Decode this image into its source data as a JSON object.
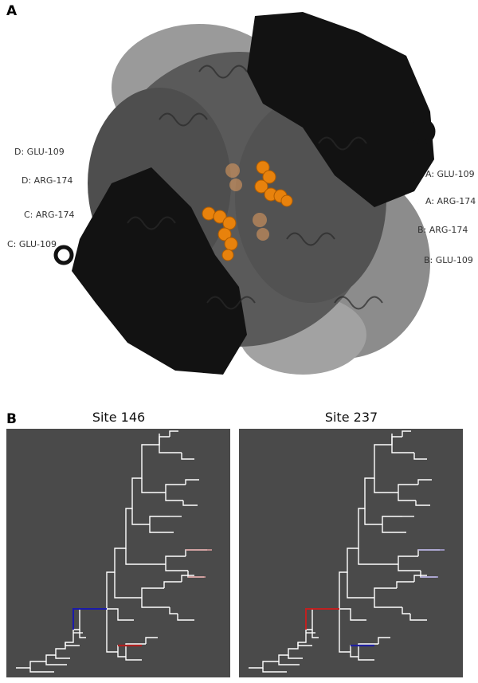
{
  "panel_a": {
    "letter": "A",
    "residue_labels": {
      "d_glu": "D: GLU-109",
      "d_arg": "D: ARG-174",
      "c_arg": "C: ARG-174",
      "c_glu": "C: GLU-109",
      "a_glu": "A: GLU-109",
      "a_arg": "A: ARG-174",
      "b_arg": "B: ARG-174",
      "b_glu": "B: GLU-109"
    },
    "colors": {
      "chain_dark": "#111111",
      "chain_mid": "#555555",
      "chain_light": "#9a9a9a",
      "residue_sphere": "#e8820c"
    }
  },
  "panel_b": {
    "letter": "B",
    "trees": [
      {
        "title": "Site 146",
        "highlight_upper": "#1a1aaa",
        "highlight_lower": "#b02020"
      },
      {
        "title": "Site 237",
        "highlight_upper": "#c02020",
        "highlight_lower": "#2020a0"
      }
    ],
    "colors": {
      "background": "#4a4a4a",
      "branch": "#ffffff"
    }
  }
}
